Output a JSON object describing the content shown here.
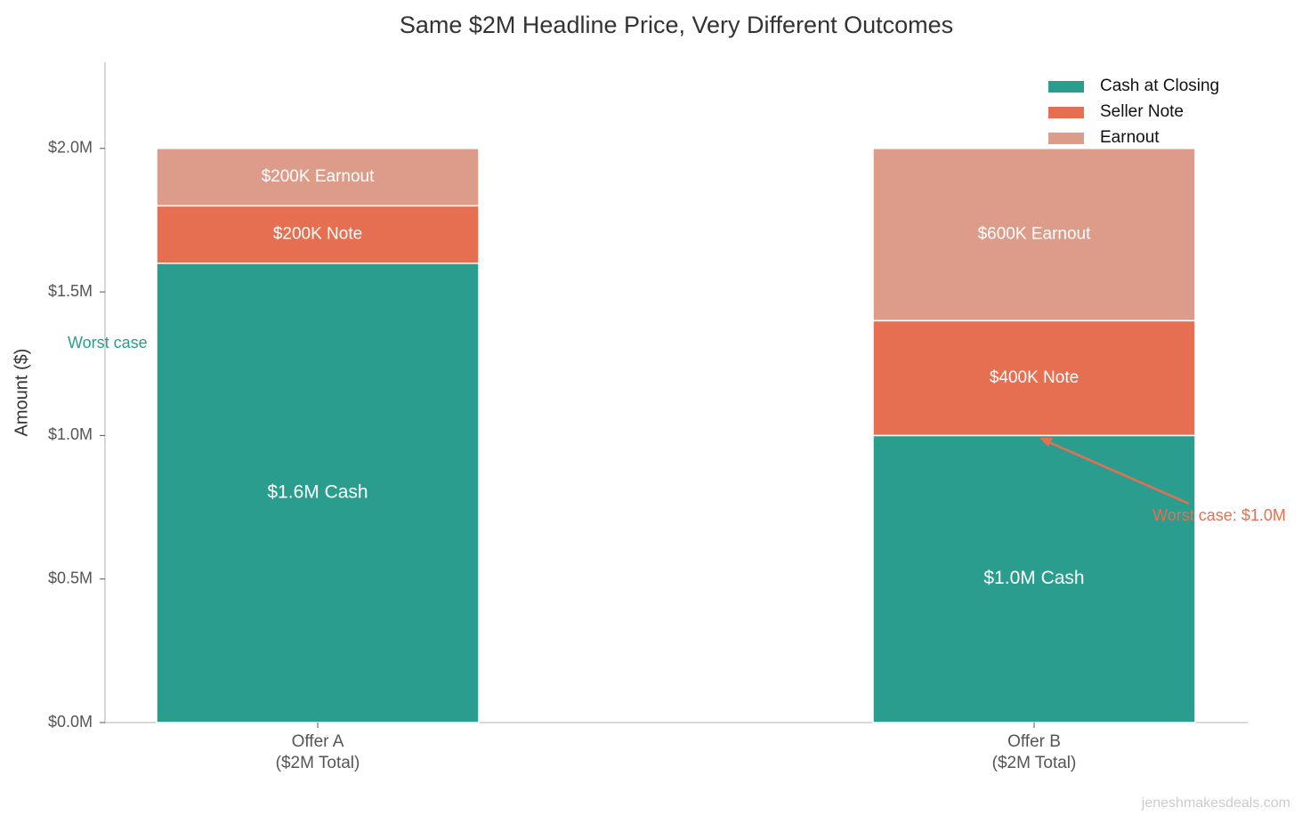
{
  "chart_data": {
    "type": "stacked_bar",
    "title": "Same $2M Headline Price, Very Different Outcomes",
    "y_label": "Amount ($)",
    "categories": [
      "Offer A\n($2M Total)",
      "Offer B\n($2M Total)"
    ],
    "series": [
      {
        "name": "Cash at Closing",
        "color": "#2a9d8f",
        "values": [
          1600000,
          1000000
        ],
        "value_labels": [
          "$1.6M Cash",
          "$1.0M Cash"
        ]
      },
      {
        "name": "Seller Note",
        "color": "#e76f51",
        "values": [
          200000,
          400000
        ],
        "value_labels": [
          "$200K Note",
          "$400K Note"
        ]
      },
      {
        "name": "Earnout",
        "color": "#dc9c89",
        "values": [
          200000,
          600000
        ],
        "value_labels": [
          "$200K Earnout",
          "$600K Earnout"
        ]
      }
    ],
    "ylim": [
      0,
      2300000
    ],
    "yticks": [
      {
        "value": 0,
        "label": "$0.0M"
      },
      {
        "value": 500000,
        "label": "$0.5M"
      },
      {
        "value": 1000000,
        "label": "$1.0M"
      },
      {
        "value": 1500000,
        "label": "$1.5M"
      },
      {
        "value": 2000000,
        "label": "$2.0M"
      }
    ],
    "legend": "upper right",
    "annotations": [
      {
        "text": "Worst case",
        "color": "#2a9d8f"
      },
      {
        "text": "Worst case: $1.0M",
        "color": "#e76f51"
      }
    ],
    "watermark": "jeneshmakesdeals.com"
  }
}
